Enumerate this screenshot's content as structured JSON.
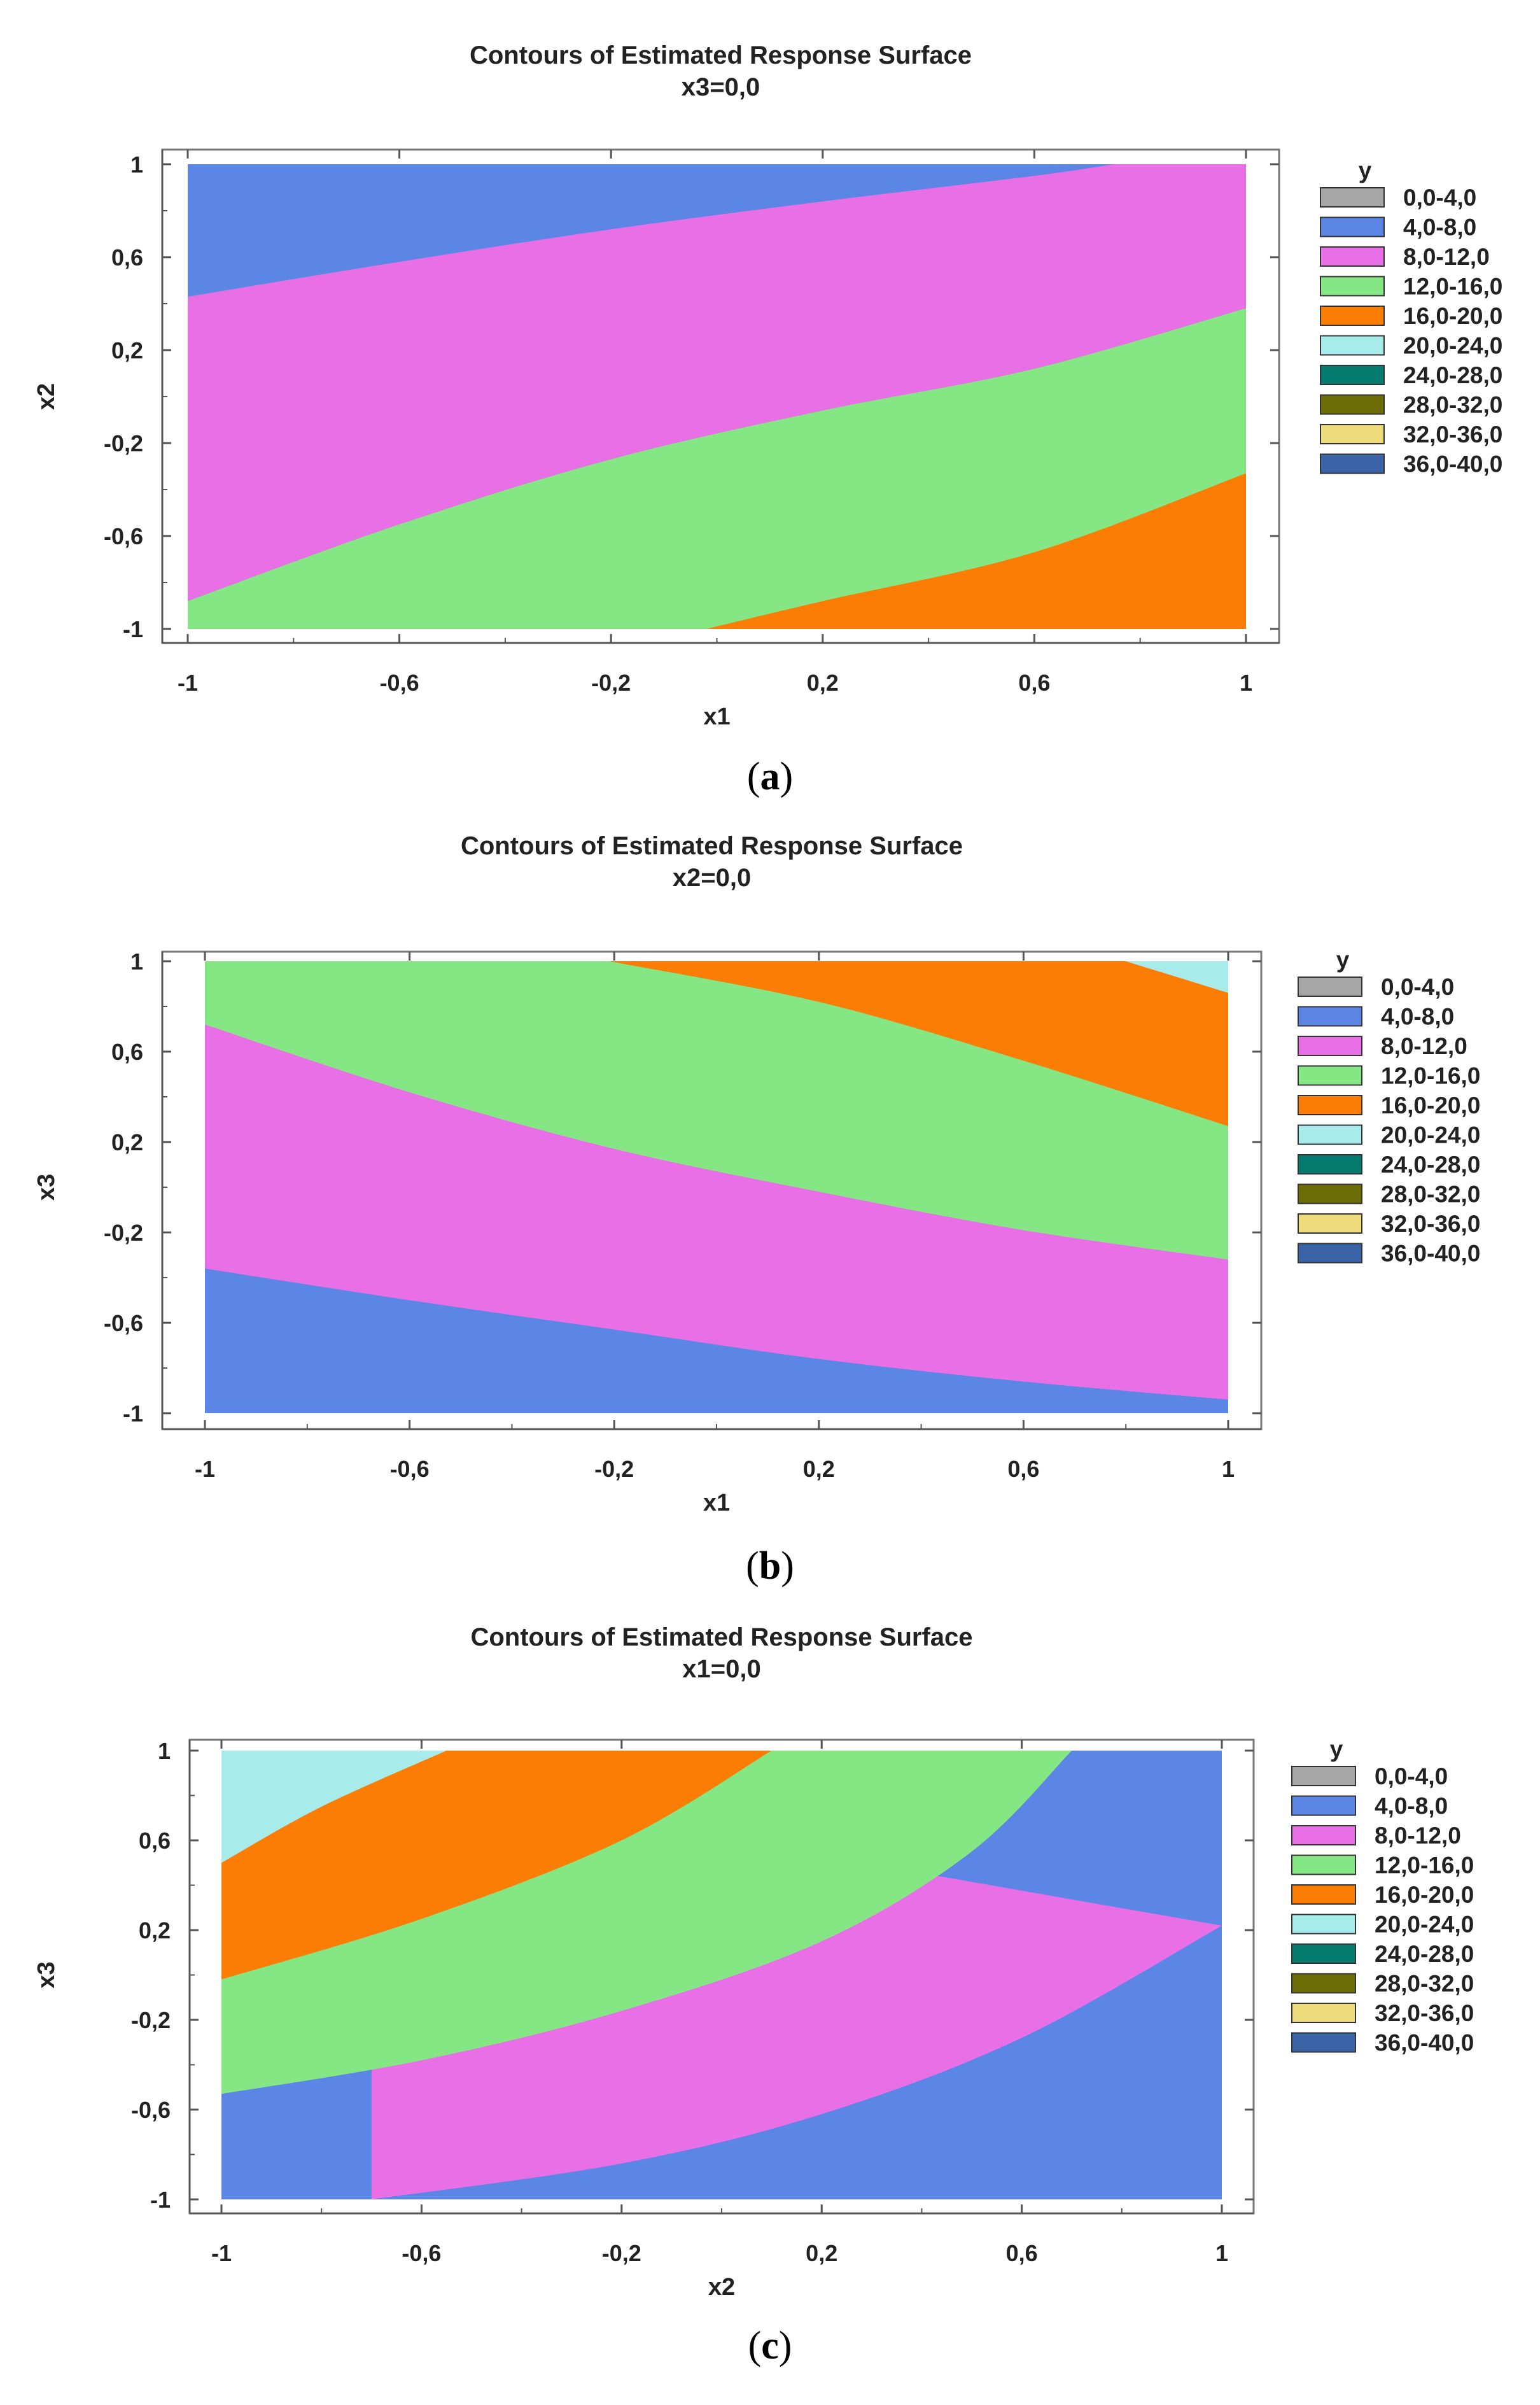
{
  "chart_data": [
    {
      "type": "contour",
      "title": "Contours of Estimated Response Surface",
      "subtitle": "x3=0,0",
      "xlabel": "x1",
      "ylabel": "x2",
      "xlim": [
        -1,
        1
      ],
      "ylim": [
        -1,
        1
      ],
      "xticks": [
        "-1",
        "-0,6",
        "-0,2",
        "0,2",
        "0,6",
        "1"
      ],
      "yticks": [
        "1",
        "0,6",
        "0,2",
        "-0,2",
        "-0,6",
        "-1"
      ],
      "legend_title": "y",
      "caption_letter": "a",
      "boundaries": [
        {
          "level": 8,
          "pts": [
            [
              -1,
              0.43
            ],
            [
              -0.6,
              0.58
            ],
            [
              -0.2,
              0.72
            ],
            [
              0.2,
              0.84
            ],
            [
              0.6,
              0.95
            ],
            [
              0.75,
              1.0
            ]
          ]
        },
        {
          "level": 12,
          "pts": [
            [
              -1,
              -0.88
            ],
            [
              -0.6,
              -0.55
            ],
            [
              -0.2,
              -0.27
            ],
            [
              0.2,
              -0.06
            ],
            [
              0.6,
              0.12
            ],
            [
              1,
              0.38
            ]
          ]
        },
        {
          "level": 16,
          "pts": [
            [
              -0.02,
              -1.0
            ],
            [
              0.2,
              -0.88
            ],
            [
              0.6,
              -0.67
            ],
            [
              1,
              -0.33
            ]
          ]
        }
      ]
    },
    {
      "type": "contour",
      "title": "Contours of Estimated Response Surface",
      "subtitle": "x2=0,0",
      "xlabel": "x1",
      "ylabel": "x3",
      "xlim": [
        -1,
        1
      ],
      "ylim": [
        -1,
        1
      ],
      "xticks": [
        "-1",
        "-0,6",
        "-0,2",
        "0,2",
        "0,6",
        "1"
      ],
      "yticks": [
        "1",
        "0,6",
        "0,2",
        "-0,2",
        "-0,6",
        "-1"
      ],
      "legend_title": "y",
      "caption_letter": "b",
      "boundaries": [
        {
          "level": 8,
          "pts": [
            [
              -1,
              -0.36
            ],
            [
              -0.6,
              -0.5
            ],
            [
              -0.2,
              -0.63
            ],
            [
              0.2,
              -0.76
            ],
            [
              0.6,
              -0.86
            ],
            [
              1,
              -0.94
            ]
          ]
        },
        {
          "level": 12,
          "pts": [
            [
              -1,
              0.72
            ],
            [
              -0.6,
              0.42
            ],
            [
              -0.2,
              0.17
            ],
            [
              0.2,
              -0.02
            ],
            [
              0.6,
              -0.19
            ],
            [
              1,
              -0.32
            ]
          ]
        },
        {
          "level": 16,
          "pts": [
            [
              -0.21,
              1.0
            ],
            [
              0.2,
              0.82
            ],
            [
              0.6,
              0.56
            ],
            [
              1,
              0.27
            ]
          ]
        },
        {
          "level": 20,
          "pts": [
            [
              0.8,
              1.0
            ],
            [
              1,
              0.86
            ]
          ]
        }
      ]
    },
    {
      "type": "contour",
      "title": "Contours of Estimated Response Surface",
      "subtitle": "x1=0,0",
      "xlabel": "x2",
      "ylabel": "x3",
      "xlim": [
        -1,
        1
      ],
      "ylim": [
        -1,
        1
      ],
      "xticks": [
        "-1",
        "-0,6",
        "-0,2",
        "0,2",
        "0,6",
        "1"
      ],
      "yticks": [
        "1",
        "0,6",
        "0,2",
        "-0,2",
        "-0,6",
        "-1"
      ],
      "legend_title": "y",
      "caption_letter": "c",
      "boundaries": [
        {
          "level": 8,
          "pts": [
            [
              -0.7,
              -1.0
            ],
            [
              -0.2,
              -0.84
            ],
            [
              0.2,
              -0.62
            ],
            [
              0.6,
              -0.28
            ],
            [
              1,
              0.22
            ]
          ]
        },
        {
          "level": 12,
          "pts": [
            [
              -1,
              -0.53
            ],
            [
              -0.6,
              -0.38
            ],
            [
              -0.2,
              -0.16
            ],
            [
              0.2,
              0.15
            ],
            [
              0.5,
              0.55
            ],
            [
              0.7,
              1.0
            ]
          ]
        },
        {
          "level": 16,
          "pts": [
            [
              -1,
              -0.02
            ],
            [
              -0.6,
              0.25
            ],
            [
              -0.2,
              0.6
            ],
            [
              0.1,
              1.0
            ]
          ]
        },
        {
          "level": 20,
          "pts": [
            [
              -1,
              0.5
            ],
            [
              -0.8,
              0.75
            ],
            [
              -0.55,
              1.0
            ]
          ]
        }
      ]
    }
  ],
  "legend_entries": [
    {
      "label": "0,0-4,0",
      "color": "#a6a6a6"
    },
    {
      "label": "4,0-8,0",
      "color": "#5b86e6"
    },
    {
      "label": "8,0-12,0",
      "color": "#e96fe6"
    },
    {
      "label": "12,0-16,0",
      "color": "#84e783"
    },
    {
      "label": "16,0-20,0",
      "color": "#fb7d06"
    },
    {
      "label": "20,0-24,0",
      "color": "#a7ebeb"
    },
    {
      "label": "24,0-28,0",
      "color": "#057a6e"
    },
    {
      "label": "28,0-32,0",
      "color": "#6d6d07"
    },
    {
      "label": "32,0-36,0",
      "color": "#eedb7b"
    },
    {
      "label": "36,0-40,0",
      "color": "#3b64a8"
    }
  ]
}
